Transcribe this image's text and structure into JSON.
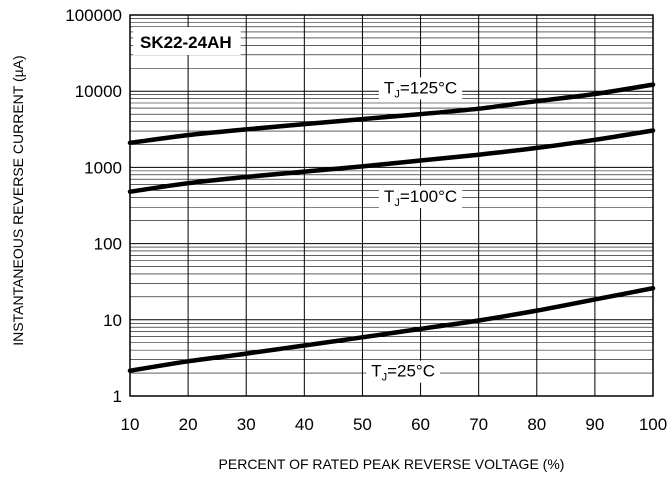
{
  "chart_data": {
    "type": "line",
    "title": "SK22-24AH",
    "xlabel": "PERCENT OF RATED PEAK REVERSE VOLTAGE (%)",
    "ylabel": "INSTANTANEOUS REVERSE CURRENT (µA)",
    "x_scale": "linear",
    "y_scale": "log",
    "xlim": [
      10,
      100
    ],
    "ylim": [
      1,
      100000
    ],
    "grid": true,
    "x_ticks": [
      "10",
      "20",
      "30",
      "40",
      "50",
      "60",
      "70",
      "80",
      "90",
      "100"
    ],
    "y_ticks": [
      "1",
      "10",
      "100",
      "1000",
      "10000",
      "100000"
    ],
    "series": [
      {
        "name": "TJ=125°C",
        "label_main": "T",
        "label_sub": "J",
        "label_rest": "=125°C",
        "label_at": [
          60,
          11200
        ],
        "x": [
          10,
          20,
          30,
          40,
          50,
          60,
          70,
          80,
          90,
          100
        ],
        "y": [
          2100,
          2650,
          3150,
          3700,
          4300,
          5000,
          5900,
          7400,
          9200,
          12200
        ]
      },
      {
        "name": "TJ=100°C",
        "label_main": "T",
        "label_sub": "J",
        "label_rest": "=100°C",
        "label_at": [
          60,
          420
        ],
        "x": [
          10,
          20,
          30,
          40,
          50,
          60,
          70,
          80,
          90,
          100
        ],
        "y": [
          480,
          620,
          750,
          880,
          1030,
          1230,
          1470,
          1800,
          2300,
          3050
        ]
      },
      {
        "name": "TJ=25°C",
        "label_main": "T",
        "label_sub": "J",
        "label_rest": "=25°C",
        "label_at": [
          57,
          2.15
        ],
        "x": [
          10,
          20,
          30,
          40,
          50,
          60,
          70,
          80,
          90,
          100
        ],
        "y": [
          2.15,
          2.85,
          3.6,
          4.6,
          5.9,
          7.6,
          9.8,
          13.2,
          18.5,
          26.0
        ]
      }
    ]
  }
}
